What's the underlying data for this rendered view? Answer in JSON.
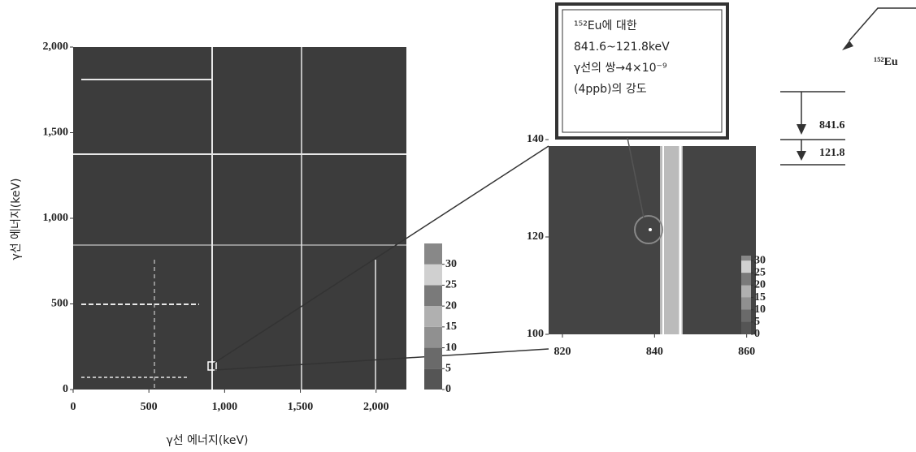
{
  "main": {
    "xlabel": "γ선 에너지(keV)",
    "ylabel": "γ선 에너지(keV)",
    "xlim": [
      0,
      2200
    ],
    "ylim": [
      0,
      2000
    ],
    "xticks": [
      0,
      500,
      {
        "value": 1000,
        "label": "1,000"
      },
      {
        "value": 1500,
        "label": "1,500"
      },
      {
        "value": 2000,
        "label": "2,000"
      }
    ],
    "yticks": [
      0,
      500,
      {
        "value": 1000,
        "label": "1,000"
      },
      {
        "value": 1500,
        "label": "1,500"
      },
      {
        "value": 2000,
        "label": "2,000"
      }
    ]
  },
  "main_colorbar": {
    "lim": [
      0,
      35
    ],
    "ticks": [
      0,
      5,
      10,
      15,
      20,
      25,
      30
    ]
  },
  "inset": {
    "xlim": [
      817,
      862
    ],
    "ylim": [
      100,
      140
    ],
    "xticks": [
      820,
      840,
      860
    ],
    "yticks": [
      100,
      120,
      140
    ]
  },
  "inset_colorbar": {
    "lim": [
      0,
      32
    ],
    "ticks": [
      0,
      5,
      10,
      15,
      20,
      25,
      30
    ]
  },
  "callout": {
    "lines": [
      "¹⁵²Eu에 대한",
      "841.6~121.8keV",
      "γ선의 쌍→4×10⁻⁹",
      "(4ppb)의 강도"
    ]
  },
  "decay_scheme": {
    "nucleus": "¹⁵²Eu",
    "transitions": [
      841.6,
      121.8
    ]
  }
}
